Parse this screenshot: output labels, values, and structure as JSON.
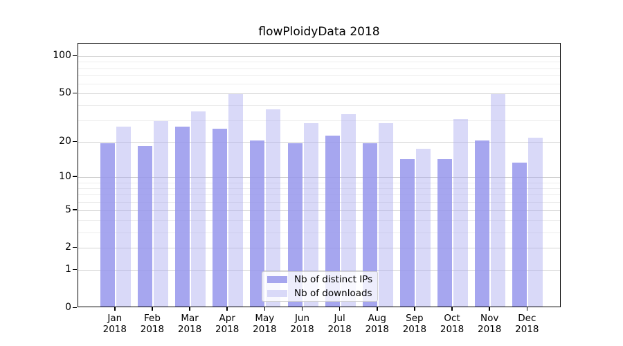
{
  "chart_data": {
    "type": "bar",
    "title": "flowPloidyData 2018",
    "categories": [
      {
        "month": "Jan",
        "year": "2018"
      },
      {
        "month": "Feb",
        "year": "2018"
      },
      {
        "month": "Mar",
        "year": "2018"
      },
      {
        "month": "Apr",
        "year": "2018"
      },
      {
        "month": "May",
        "year": "2018"
      },
      {
        "month": "Jun",
        "year": "2018"
      },
      {
        "month": "Jul",
        "year": "2018"
      },
      {
        "month": "Aug",
        "year": "2018"
      },
      {
        "month": "Sep",
        "year": "2018"
      },
      {
        "month": "Oct",
        "year": "2018"
      },
      {
        "month": "Nov",
        "year": "2018"
      },
      {
        "month": "Dec",
        "year": "2018"
      }
    ],
    "series": [
      {
        "name": "Nb of distinct IPs",
        "color": "#a6a6ee",
        "css": "rgba(150,150,236,0.85)",
        "values": [
          19,
          18,
          26,
          25,
          20,
          19,
          22,
          19,
          14,
          14,
          20,
          13
        ]
      },
      {
        "name": "Nb of downloads",
        "color": "#d9d9f8",
        "css": "rgba(171,171,240,0.45)",
        "values": [
          26,
          29,
          35,
          48,
          36,
          28,
          33,
          28,
          17,
          30,
          48,
          21
        ]
      }
    ],
    "yscale": "log10(1+y)",
    "ylim": [
      0,
      123
    ],
    "yticks": [
      0,
      1,
      2,
      5,
      10,
      20,
      50,
      100
    ],
    "minor_gridlines": [
      3,
      4,
      6,
      7,
      8,
      9,
      30,
      40,
      60,
      70,
      80,
      90
    ],
    "grid": true,
    "legend_position": "lower center-right inside plot",
    "colors": {
      "major_grid": "#d2d2d2",
      "minor_grid": "#ececec",
      "axis": "#000000",
      "background": "#ffffff"
    }
  }
}
